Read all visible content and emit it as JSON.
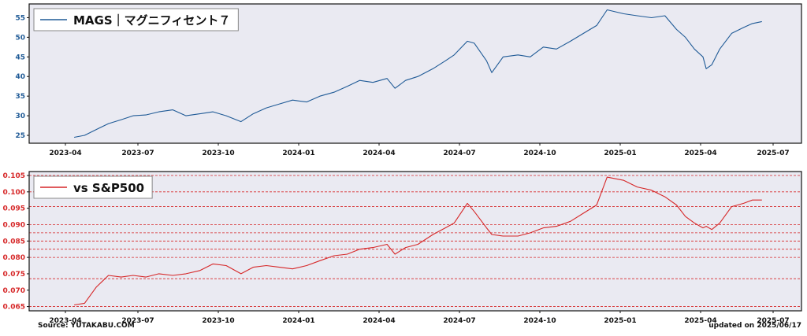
{
  "footer": {
    "source": "Source: YUTAKABU.COM",
    "updated": "updated on 2025/06/17"
  },
  "chart_data": [
    {
      "type": "line",
      "legend": "MAGS｜マグニフィセント７",
      "legend_position": "top-left",
      "color": "#1f5a96",
      "xlim": [
        "2023-04",
        "2025-07"
      ],
      "ylim": [
        23,
        58.5
      ],
      "x_ticks": [
        "2023-04",
        "2023-07",
        "2023-10",
        "2024-01",
        "2024-04",
        "2024-07",
        "2024-10",
        "2025-01",
        "2025-04",
        "2025-07"
      ],
      "y_ticks": [
        25,
        30,
        35,
        40,
        45,
        50,
        55
      ],
      "grid": false,
      "background": "#eaeaf2",
      "series": [
        {
          "x": [
            "2023-04-12",
            "2023-04-25",
            "2023-05-10",
            "2023-05-25",
            "2023-06-10",
            "2023-06-25",
            "2023-07-10",
            "2023-07-25",
            "2023-08-10",
            "2023-08-25",
            "2023-09-10",
            "2023-09-25",
            "2023-10-10",
            "2023-10-27",
            "2023-11-10",
            "2023-11-25",
            "2023-12-10",
            "2023-12-25",
            "2024-01-10",
            "2024-01-25",
            "2024-02-10",
            "2024-02-25",
            "2024-03-10",
            "2024-03-25",
            "2024-04-10",
            "2024-04-19",
            "2024-05-01",
            "2024-05-15",
            "2024-06-01",
            "2024-06-15",
            "2024-06-25",
            "2024-07-10",
            "2024-07-18",
            "2024-08-01",
            "2024-08-07",
            "2024-08-20",
            "2024-09-06",
            "2024-09-20",
            "2024-10-05",
            "2024-10-20",
            "2024-11-05",
            "2024-11-20",
            "2024-12-05",
            "2024-12-17",
            "2025-01-05",
            "2025-01-20",
            "2025-02-05",
            "2025-02-20",
            "2025-03-05",
            "2025-03-15",
            "2025-03-25",
            "2025-04-04",
            "2025-04-08",
            "2025-04-15",
            "2025-04-25",
            "2025-05-10",
            "2025-05-25",
            "2025-06-05",
            "2025-06-17"
          ],
          "values": [
            24.5,
            25,
            26.5,
            28,
            29,
            30,
            30.2,
            31,
            31.5,
            30,
            30.5,
            31,
            30,
            28.5,
            30.5,
            32,
            33,
            34,
            33.5,
            35,
            36,
            37.5,
            39,
            38.5,
            39.5,
            37,
            39,
            40,
            42,
            44,
            45.5,
            49,
            48.5,
            44,
            41,
            45,
            45.5,
            45,
            47.5,
            47,
            49,
            51,
            53,
            57,
            56,
            55.5,
            55,
            55.5,
            52,
            50,
            47,
            45,
            42,
            43,
            47,
            51,
            52.5,
            53.5,
            54
          ]
        }
      ]
    },
    {
      "type": "line",
      "legend": "vs S&P500",
      "legend_position": "top-left",
      "color": "#d62728",
      "xlim": [
        "2023-04",
        "2025-07"
      ],
      "ylim": [
        0.0637,
        0.1062
      ],
      "x_ticks": [
        "2023-04",
        "2023-07",
        "2023-10",
        "2024-01",
        "2024-04",
        "2024-07",
        "2024-10",
        "2025-01",
        "2025-04",
        "2025-07"
      ],
      "y_ticks": [
        0.065,
        0.07,
        0.075,
        0.08,
        0.085,
        0.09,
        0.095,
        0.1,
        0.105
      ],
      "y_tick_labels": [
        "0.065",
        "0.070",
        "0.075",
        "0.080",
        "0.085",
        "0.090",
        "0.095",
        "0.100",
        "0.105"
      ],
      "hlines": [
        0.065,
        0.0735,
        0.08,
        0.0825,
        0.085,
        0.0875,
        0.09,
        0.0955,
        0.1,
        0.105
      ],
      "grid": false,
      "background": "#eaeaf2",
      "series": [
        {
          "x": [
            "2023-04-12",
            "2023-04-25",
            "2023-05-10",
            "2023-05-25",
            "2023-06-10",
            "2023-06-25",
            "2023-07-10",
            "2023-07-25",
            "2023-08-10",
            "2023-08-25",
            "2023-09-10",
            "2023-09-25",
            "2023-10-10",
            "2023-10-27",
            "2023-11-10",
            "2023-11-25",
            "2023-12-10",
            "2023-12-25",
            "2024-01-10",
            "2024-01-25",
            "2024-02-10",
            "2024-02-25",
            "2024-03-10",
            "2024-03-25",
            "2024-04-10",
            "2024-04-19",
            "2024-05-01",
            "2024-05-15",
            "2024-06-01",
            "2024-06-15",
            "2024-06-25",
            "2024-07-10",
            "2024-07-18",
            "2024-08-01",
            "2024-08-07",
            "2024-08-20",
            "2024-09-06",
            "2024-09-20",
            "2024-10-05",
            "2024-10-20",
            "2024-11-05",
            "2024-11-20",
            "2024-12-05",
            "2024-12-17",
            "2025-01-05",
            "2025-01-20",
            "2025-02-05",
            "2025-02-20",
            "2025-03-05",
            "2025-03-15",
            "2025-03-25",
            "2025-04-04",
            "2025-04-08",
            "2025-04-15",
            "2025-04-25",
            "2025-05-10",
            "2025-05-25",
            "2025-06-05",
            "2025-06-17"
          ],
          "values": [
            0.0655,
            0.066,
            0.071,
            0.0745,
            0.074,
            0.0745,
            0.074,
            0.075,
            0.0745,
            0.075,
            0.076,
            0.078,
            0.0775,
            0.075,
            0.077,
            0.0775,
            0.077,
            0.0765,
            0.0775,
            0.079,
            0.0805,
            0.081,
            0.0825,
            0.083,
            0.084,
            0.081,
            0.083,
            0.084,
            0.087,
            0.089,
            0.0905,
            0.0965,
            0.094,
            0.089,
            0.087,
            0.0865,
            0.0865,
            0.0875,
            0.089,
            0.0895,
            0.091,
            0.0935,
            0.096,
            0.1045,
            0.1035,
            0.1015,
            0.1005,
            0.0985,
            0.096,
            0.0925,
            0.0905,
            0.089,
            0.0895,
            0.0885,
            0.0905,
            0.0955,
            0.0965,
            0.0975,
            0.0975
          ]
        }
      ]
    }
  ]
}
